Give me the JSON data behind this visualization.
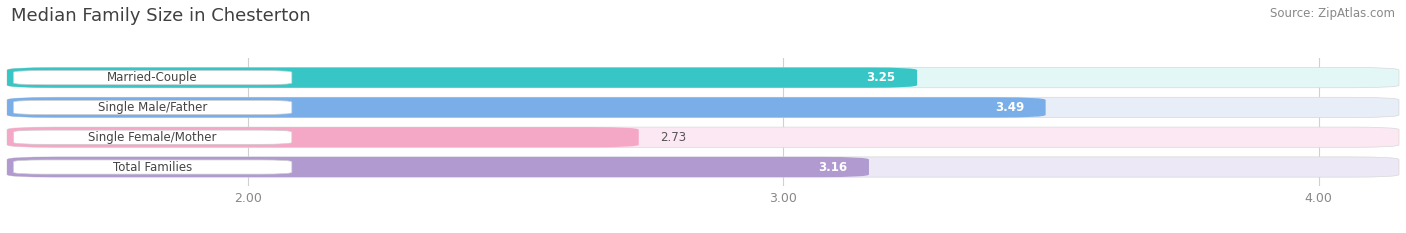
{
  "title": "Median Family Size in Chesterton",
  "source": "Source: ZipAtlas.com",
  "categories": [
    "Married-Couple",
    "Single Male/Father",
    "Single Female/Mother",
    "Total Families"
  ],
  "values": [
    3.25,
    3.49,
    2.73,
    3.16
  ],
  "bar_colors": [
    "#38c5c5",
    "#7aaee8",
    "#f5a8c5",
    "#b09ad0"
  ],
  "bar_bg_colors": [
    "#e4f7f7",
    "#e8eef8",
    "#fce8f2",
    "#ece8f5"
  ],
  "xstart": 1.55,
  "xmin": 1.55,
  "xmax": 4.15,
  "xticks": [
    2.0,
    3.0,
    4.0
  ],
  "tick_fontsize": 9,
  "title_fontsize": 13,
  "source_fontsize": 8.5,
  "bar_height": 0.68,
  "bar_gap": 1.0,
  "figsize": [
    14.06,
    2.33
  ],
  "dpi": 100
}
